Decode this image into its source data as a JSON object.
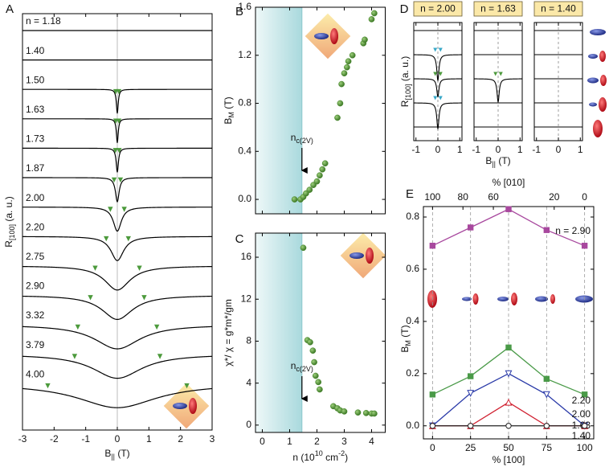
{
  "chart_data": [
    {
      "type": "trace_stack",
      "panel_label": "A",
      "labels": [
        "n = 1.18",
        "1.40",
        "1.50",
        "1.63",
        "1.73",
        "1.87",
        "2.00",
        "2.20",
        "2.75",
        "2.90",
        "3.32",
        "3.79",
        "4.00"
      ],
      "bm": [
        null,
        null,
        0.05,
        0.05,
        0.06,
        0.1,
        0.22,
        0.35,
        0.7,
        0.85,
        1.25,
        1.35,
        2.2
      ],
      "xlim": [
        -3,
        3
      ],
      "xticks": [
        -3,
        -2,
        -1,
        0,
        1,
        2,
        3
      ],
      "xlabel": [
        "B",
        "||",
        " (T)"
      ],
      "ylabel": [
        "R",
        "[100]",
        " (a. u.)"
      ],
      "color": "#4c9a3c"
    },
    {
      "type": "scatter",
      "panel_label": "B",
      "x": [
        1.18,
        1.4,
        1.5,
        1.6,
        1.73,
        1.87,
        2.0,
        2.1,
        2.2,
        2.3,
        2.75,
        2.85,
        2.9,
        3.0,
        3.1,
        3.15,
        3.3,
        3.7,
        3.75,
        4.0,
        4.1
      ],
      "values": [
        0.0,
        0.0,
        0.02,
        0.05,
        0.08,
        0.12,
        0.15,
        0.2,
        0.25,
        0.3,
        0.68,
        0.8,
        0.96,
        1.05,
        1.1,
        1.15,
        1.2,
        1.3,
        1.33,
        1.5,
        1.55
      ],
      "xlim": [
        -0.25,
        4.5
      ],
      "xticks": [
        0,
        1,
        2,
        3,
        4
      ],
      "xtick_labels": false,
      "ylim": [
        -0.12,
        1.6
      ],
      "yticks": [
        {
          "value": 0,
          "label": "0.0"
        },
        0.4,
        0.8,
        1.2,
        1.6
      ],
      "ylabel": [
        "B",
        "M",
        " (T)"
      ],
      "annotation": [
        "n",
        "c(2V)"
      ],
      "critical_n": 1.45,
      "color": "#4c8a30"
    },
    {
      "type": "scatter",
      "panel_label": "C",
      "x": [
        1.5,
        1.65,
        1.75,
        1.85,
        1.9,
        1.95,
        2.05,
        2.1,
        2.6,
        2.75,
        2.85,
        3.0,
        3.5,
        3.8,
        4.0,
        4.1
      ],
      "values": [
        16.9,
        8.1,
        7.9,
        7.1,
        6.0,
        4.7,
        4.1,
        3.4,
        1.8,
        1.6,
        1.4,
        1.3,
        1.2,
        1.15,
        1.1,
        1.1
      ],
      "xlim": [
        -0.25,
        4.5
      ],
      "xticks": [
        0,
        1,
        2,
        3,
        4
      ],
      "xtick_labels": true,
      "ylim": [
        -0.7,
        18.3
      ],
      "yticks": [
        0,
        4,
        8,
        12,
        16
      ],
      "xlabel": [
        "n (10",
        "10",
        " cm",
        "-2",
        ")"
      ],
      "ylabel": "χ*/ χ = g*m*/gm",
      "annotation": [
        "n",
        "c(2V)"
      ],
      "critical_n": 1.45,
      "color": "#4c8a30"
    },
    {
      "type": "dip_traces",
      "panel_label": "D",
      "header": "n = 2.00",
      "dips": [
        0,
        1,
        0.7,
        1,
        0
      ],
      "xlim": [
        -1.1,
        1.1
      ],
      "xticks": [
        -1,
        0,
        1
      ],
      "ylabel": [
        "R",
        "[100]",
        " (a. u.)"
      ]
    },
    {
      "type": "dip_traces",
      "header": "n = 1.63",
      "dips": [
        0,
        0,
        0.9,
        0,
        0
      ],
      "xlim": [
        -1.1,
        1.1
      ],
      "xticks": [
        -1,
        0,
        1
      ],
      "xlabel": [
        "B",
        "||",
        " (T)"
      ]
    },
    {
      "type": "dip_traces",
      "header": "n = 1.40",
      "dips": [
        0,
        0,
        0,
        0,
        0
      ],
      "xlim": [
        -1.1,
        1.1
      ],
      "xticks": [
        -1,
        0,
        1
      ]
    },
    {
      "type": "line",
      "panel_label": "E",
      "x": [
        0,
        25,
        50,
        75,
        100
      ],
      "series": [
        {
          "name": "n = 2.90",
          "color": "#a8489e",
          "marker": "square",
          "values": [
            0.69,
            0.76,
            0.83,
            0.75,
            0.69
          ]
        },
        {
          "name": "2.20",
          "color": "#4a9a48",
          "marker": "square",
          "values": [
            0.12,
            0.19,
            0.3,
            0.18,
            0.12
          ]
        },
        {
          "name": "2.00",
          "color": "#2a3aa8",
          "marker": "triangle-down",
          "values": [
            0,
            0.125,
            0.2,
            0.12,
            0
          ]
        },
        {
          "name": "1.63",
          "color": "#d02030",
          "marker": "triangle-up",
          "values": [
            0,
            0,
            0.09,
            0,
            0
          ]
        },
        {
          "name": "1.40",
          "color": "#222222",
          "marker": "circle",
          "values": [
            0,
            0,
            0,
            0,
            0
          ]
        }
      ],
      "xlim": [
        -6,
        106
      ],
      "xticks": [
        0,
        25,
        50,
        75,
        100
      ],
      "xlabel": "% [100]",
      "x2lim": [
        106,
        -6
      ],
      "x2ticks": [
        100,
        80,
        60,
        20,
        0
      ],
      "x2label": "% [010]",
      "ylim": [
        -0.05,
        0.84
      ],
      "yticks": [
        {
          "value": 0,
          "label": "0.0"
        },
        0.2,
        0.4,
        0.6,
        0.8
      ],
      "ylabel": [
        "B",
        "M",
        " (T)"
      ],
      "grid": true
    }
  ]
}
